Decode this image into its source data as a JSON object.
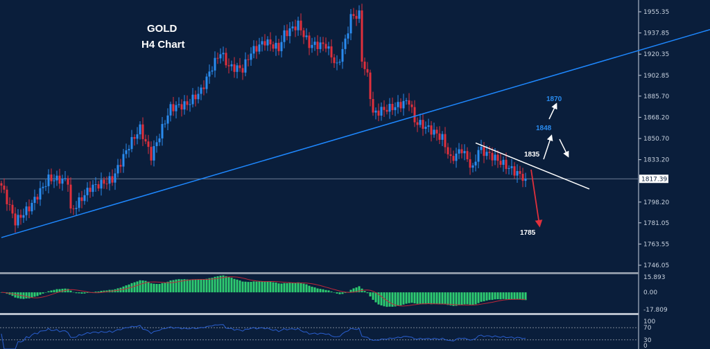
{
  "chart_data": {
    "type": "candlestick",
    "title": "GOLD",
    "subtitle": "H4 Chart",
    "ylim": [
      1746.05,
      1955.35
    ],
    "y_ticks": [
      "1955.35",
      "1937.85",
      "1920.35",
      "1902.85",
      "1885.70",
      "1868.20",
      "1850.70",
      "1833.20",
      "1798.20",
      "1781.05",
      "1763.55",
      "1746.05"
    ],
    "current_price": "1817.39",
    "close_waypoints": [
      [
        0,
        1811.8
      ],
      [
        5,
        1782
      ],
      [
        10,
        1793.5
      ],
      [
        17,
        1817.5
      ],
      [
        24,
        1816
      ],
      [
        25,
        1790
      ],
      [
        32,
        1810
      ],
      [
        40,
        1817
      ],
      [
        46,
        1845
      ],
      [
        50,
        1859
      ],
      [
        54,
        1836
      ],
      [
        59,
        1865
      ],
      [
        61,
        1876
      ],
      [
        67,
        1879
      ],
      [
        72,
        1890
      ],
      [
        76,
        1910
      ],
      [
        79,
        1922
      ],
      [
        82,
        1910
      ],
      [
        87,
        1908
      ],
      [
        90,
        1922
      ],
      [
        95,
        1931
      ],
      [
        100,
        1925
      ],
      [
        102,
        1937
      ],
      [
        107,
        1945
      ],
      [
        111,
        1928
      ],
      [
        117,
        1928
      ],
      [
        121,
        1910
      ],
      [
        124,
        1931
      ],
      [
        126,
        1951
      ],
      [
        129,
        1953
      ],
      [
        130,
        1916
      ],
      [
        132,
        1902
      ],
      [
        134,
        1871
      ],
      [
        137,
        1874
      ],
      [
        142,
        1877
      ],
      [
        147,
        1882
      ],
      [
        149,
        1865
      ],
      [
        154,
        1859
      ],
      [
        159,
        1851
      ],
      [
        162,
        1833
      ],
      [
        166,
        1842
      ],
      [
        170,
        1825
      ],
      [
        172,
        1842
      ],
      [
        177,
        1836
      ],
      [
        182,
        1828
      ],
      [
        186,
        1822
      ],
      [
        189,
        1817.4
      ]
    ],
    "colors": {
      "bull": "#2a8cf0",
      "bear": "#e0303c",
      "background": "#0a1e3b",
      "trendline": "#1e88ff",
      "macd_hist": "#2ecc71",
      "macd_signal": "#c0283a",
      "rsi": "#2a5fd0"
    },
    "trendlines": [
      {
        "color": "#1e88ff",
        "from": [
          0,
          1768.9
        ],
        "to": [
          256,
          1941
        ]
      },
      {
        "color": "#ffffff",
        "from": [
          171,
          1847
        ],
        "to": [
          212,
          1809
        ]
      }
    ],
    "annotations": [
      {
        "text": "1835",
        "color": "#ffffff"
      },
      {
        "text": "1848",
        "color": "#2a8cf0"
      },
      {
        "text": "1870",
        "color": "#2a8cf0"
      },
      {
        "text": "1785",
        "color": "#ffffff"
      }
    ],
    "macd": {
      "ticks": [
        "15.893",
        "0.00",
        "-17.809"
      ],
      "ylim": [
        -17.809,
        15.893
      ]
    },
    "rsi": {
      "ticks": [
        "100",
        "70",
        "30",
        "0"
      ],
      "levels": [
        70,
        30
      ]
    }
  }
}
